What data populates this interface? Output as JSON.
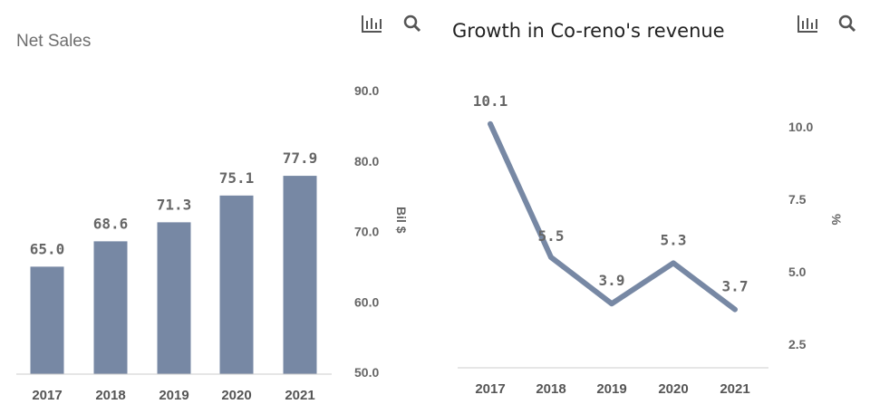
{
  "chart_data": [
    {
      "type": "bar",
      "title": "Net Sales",
      "categories": [
        "2017",
        "2018",
        "2019",
        "2020",
        "2021"
      ],
      "values": [
        65.0,
        68.6,
        71.3,
        75.1,
        77.9
      ],
      "data_labels": [
        "65.0",
        "68.6",
        "71.3",
        "75.1",
        "77.9"
      ],
      "ylabel": "Bil $",
      "ylim": [
        50,
        90
      ],
      "y_ticks": [
        "50.0",
        "60.0",
        "70.0",
        "80.0",
        "90.0"
      ],
      "y_axis_side": "right",
      "bar_color": "#7788a4",
      "grid": false
    },
    {
      "type": "line",
      "title": "Growth in Co-reno's revenue",
      "categories": [
        "2017",
        "2018",
        "2019",
        "2020",
        "2021"
      ],
      "values": [
        10.1,
        5.5,
        3.9,
        5.3,
        3.7
      ],
      "data_labels": [
        "10.1",
        "5.5",
        "3.9",
        "5.3",
        "3.7"
      ],
      "ylabel": "%",
      "ylim": [
        1.5,
        11.5
      ],
      "y_ticks": [
        "2.5",
        "5.0",
        "7.5",
        "10.0"
      ],
      "y_axis_side": "right",
      "line_color": "#7788a4",
      "grid": false
    }
  ],
  "icons": [
    "bar-chart-icon",
    "search-icon"
  ]
}
